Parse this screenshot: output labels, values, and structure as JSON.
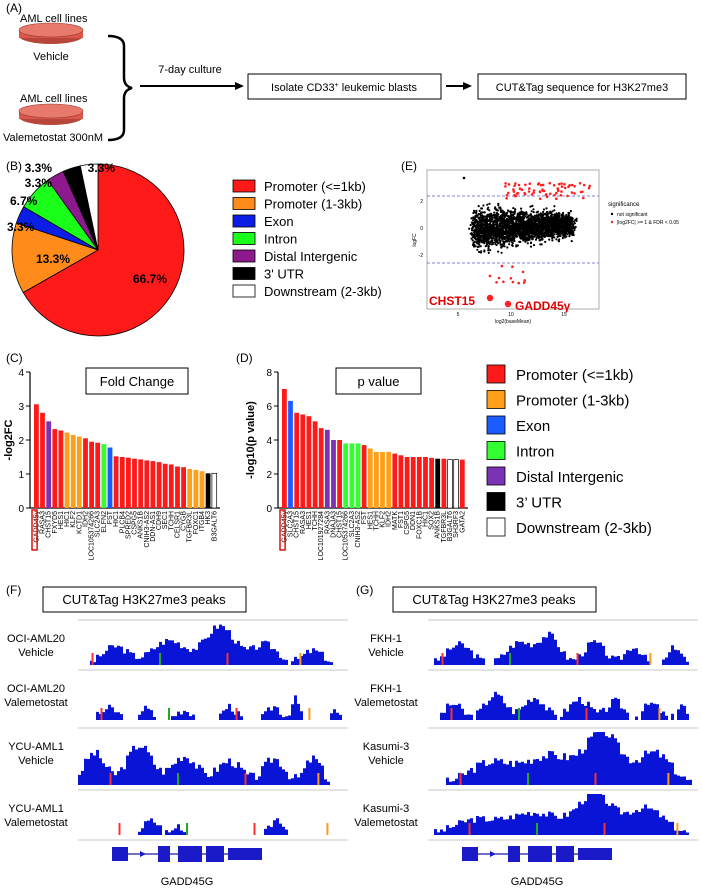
{
  "panel_labels": {
    "a": "(A)",
    "b": "(B)",
    "c": "(C)",
    "d": "(D)",
    "e": "(E)",
    "f": "(F)",
    "g": "(G)"
  },
  "flow": {
    "group1_line1": "AML cell lines",
    "group1_line2": "Vehicle",
    "group2_line1": "AML cell lines",
    "group2_line2": "Valemetostat 300nM",
    "arrow_label": "7-day culture",
    "box1": "Isolate CD33",
    "box1_sup": "+",
    "box1_tail": " leukemic blasts",
    "box2": "CUT&Tag sequence for H3K27me3"
  },
  "categories": [
    {
      "name": "Promoter (<=1kb)",
      "color": "#ff1a1a"
    },
    {
      "name": "Promoter (1-3kb)",
      "color": "#ff8c1a"
    },
    {
      "name": "Exon",
      "color": "#0b1ee6"
    },
    {
      "name": "Intron",
      "color": "#1aff1a"
    },
    {
      "name": "Distal Intergenic",
      "color": "#8c1a8c"
    },
    {
      "name": "3' UTR",
      "color": "#000000"
    },
    {
      "name": "Downstream (2-3kb)",
      "color": "#ffffff"
    }
  ],
  "legend_d": [
    {
      "name": "Promoter (<=1kb)",
      "color": "#ff1a1a"
    },
    {
      "name": "Promoter (1-3kb)",
      "color": "#ff9f1a"
    },
    {
      "name": "Exon",
      "color": "#1a5cff"
    },
    {
      "name": "Intron",
      "color": "#33ff33"
    },
    {
      "name": "Distal Intergenic",
      "color": "#7a33b3"
    },
    {
      "name": "3’ UTR",
      "color": "#000000"
    },
    {
      "name": "Downstream (2-3kb)",
      "color": "#ffffff"
    }
  ],
  "chart_data": [
    {
      "type": "pie",
      "id": "B",
      "labels": [
        "Promoter (<=1kb)",
        "Promoter (1-3kb)",
        "Exon",
        "Intron",
        "Distal Intergenic",
        "3' UTR",
        "Downstream (2-3kb)"
      ],
      "values": [
        66.7,
        13.3,
        3.3,
        6.7,
        3.3,
        3.3,
        3.3
      ],
      "value_labels": [
        "66.7%",
        "13.3%",
        "3.3%",
        "6.7%",
        "3.3%",
        "3.3%",
        "3.3%"
      ]
    },
    {
      "type": "bar",
      "id": "C",
      "title": "Fold Change",
      "ylabel": "-log2FC",
      "ylim": [
        0,
        4
      ],
      "yticks": [
        "0",
        "1",
        "2",
        "3",
        "4"
      ],
      "highlight": "GADD45γ",
      "categories": [
        "GADD45γ",
        "RASA3",
        "CHST15",
        "FXYD5",
        "HES1",
        "HIC1",
        "KLF2",
        "KCTD1",
        "IDH2",
        "LOC105374266",
        "SLC2A3",
        "ELFN2",
        "FST",
        "HIC1",
        "PLCB4",
        "SPRED2",
        "CSPG5",
        "ANKS1B",
        "CNIH3-AS2",
        "DDN-AS1",
        "CDH9",
        "SEC1",
        "TCHH",
        "CELSR1",
        "CYGB",
        "TGFBR3L",
        "FOXC1",
        "ITGB4",
        "HK3",
        "B3GALT6"
      ],
      "values": [
        3.05,
        2.8,
        2.55,
        2.32,
        2.28,
        2.22,
        2.15,
        2.1,
        2.05,
        1.95,
        1.92,
        1.88,
        1.78,
        1.52,
        1.5,
        1.48,
        1.45,
        1.43,
        1.4,
        1.38,
        1.35,
        1.3,
        1.28,
        1.22,
        1.2,
        1.15,
        1.12,
        1.08,
        1.02,
        1.02
      ],
      "cats": [
        0,
        0,
        4,
        0,
        0,
        1,
        1,
        1,
        0,
        0,
        0,
        3,
        2,
        0,
        0,
        0,
        0,
        0,
        0,
        0,
        0,
        0,
        0,
        0,
        0,
        1,
        1,
        1,
        5,
        6
      ]
    },
    {
      "type": "bar",
      "id": "D",
      "title": "p value",
      "ylabel": "-log10(p value)",
      "ylim": [
        0,
        8
      ],
      "yticks": [
        "0",
        "2",
        "4",
        "6",
        "8"
      ],
      "highlight": "GADD45γ",
      "categories": [
        "GADD45γ",
        "SLC2A3",
        "CHST15",
        "RASA3",
        "HES1",
        "TCHH",
        "LOC101927284",
        "RASA3",
        "DNAJA3",
        "CHST15",
        "LOC105374266",
        "SLC2A3",
        "CNIH3-AS2",
        "FST",
        "HES1",
        "TCHH",
        "KLF2",
        "IDH2",
        "MATK",
        "FST1",
        "CSPG5",
        "DDN1",
        "FOXC1B",
        "HIC1",
        "SOX2",
        "ANKS1B",
        "TGFBR3L",
        "B3GALT6",
        "SH3RF3",
        "GATA2"
      ],
      "values": [
        7.0,
        6.3,
        5.6,
        5.5,
        5.4,
        5.1,
        4.7,
        4.6,
        4.0,
        4.0,
        3.8,
        3.8,
        3.8,
        3.7,
        3.5,
        3.3,
        3.3,
        3.3,
        3.2,
        3.1,
        3.0,
        3.0,
        3.0,
        3.0,
        2.95,
        2.9,
        2.9,
        2.85,
        2.85,
        2.85
      ],
      "cats": [
        0,
        2,
        0,
        0,
        0,
        0,
        0,
        4,
        4,
        0,
        3,
        3,
        3,
        0,
        1,
        1,
        1,
        1,
        0,
        0,
        0,
        0,
        0,
        0,
        0,
        5,
        0,
        6,
        6,
        0
      ]
    },
    {
      "type": "scatter",
      "id": "E",
      "xlabel": "log2(baseMean)",
      "ylabel": "logFC",
      "xticks": [
        "5",
        "10",
        "15"
      ],
      "yticks": [
        "2",
        "0",
        "-2"
      ],
      "legend_title": "significance",
      "legend_items": [
        "not significant",
        "|log2FC| >= 1 & FDR < 0.05"
      ],
      "annotations": [
        "CHST15",
        "GADD45γ"
      ]
    }
  ],
  "track_titles": {
    "f": "CUT&Tag H3K27me3 peaks",
    "g": "CUT&Tag H3K27me3 peaks"
  },
  "tracks_f": [
    {
      "line1": "OCI-AML20",
      "line2": "Vehicle"
    },
    {
      "line1": "OCI-AML20",
      "line2": "Valemetostat"
    },
    {
      "line1": "YCU-AML1",
      "line2": "Vehicle"
    },
    {
      "line1": "YCU-AML1",
      "line2": "Valemetostat"
    }
  ],
  "tracks_g": [
    {
      "line1": "FKH-1",
      "line2": "Vehicle"
    },
    {
      "line1": "FKH-1",
      "line2": "Valemetostat"
    },
    {
      "line1": "Kasumi-3",
      "line2": "Vehicle"
    },
    {
      "line1": "Kasumi-3",
      "line2": "Valemetostat"
    }
  ],
  "gene_label_f": "GADD45G",
  "gene_label_g": "GADD45G"
}
